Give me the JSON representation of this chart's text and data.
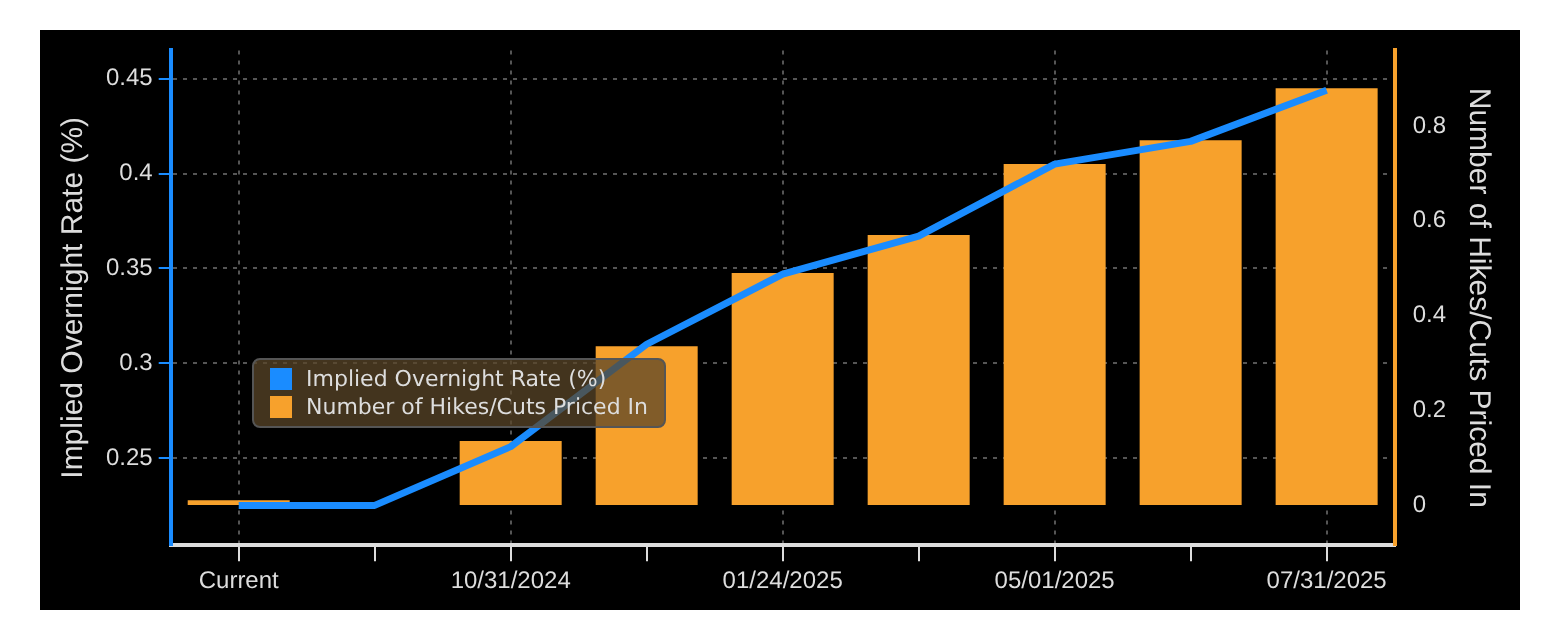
{
  "chart_data": {
    "type": "bar",
    "ylabel": "Implied Overnight Rate (%)",
    "y2label": "Number of Hikes/Cuts Priced In",
    "categories": [
      "Current",
      null,
      "10/31/2024",
      null,
      "01/24/2025",
      null,
      "05/01/2025",
      null,
      "07/31/2025"
    ],
    "series": [
      {
        "name": "Implied Overnight Rate (%)",
        "type": "line",
        "color": "#1a8cff",
        "values": [
          0.225,
          0.225,
          0.256,
          0.31,
          0.347,
          0.367,
          0.405,
          0.417,
          0.444
        ]
      },
      {
        "name": "Number of Hikes/Cuts Priced In",
        "axis": "y2",
        "color": "#f7a12c",
        "values": [
          0.01,
          null,
          0.135,
          0.335,
          0.49,
          0.57,
          0.72,
          0.77,
          0.88
        ]
      }
    ],
    "ylim": [
      0.204,
      0.465
    ],
    "yticks": [
      0.25,
      0.3,
      0.35,
      0.4,
      0.45
    ],
    "y2lim": [
      -0.085,
      0.96
    ],
    "y2ticks": [
      0.0,
      0.2,
      0.4,
      0.6,
      0.8
    ],
    "grid": true,
    "legend": "bottom left",
    "marker": "none",
    "line_style": "solid"
  }
}
